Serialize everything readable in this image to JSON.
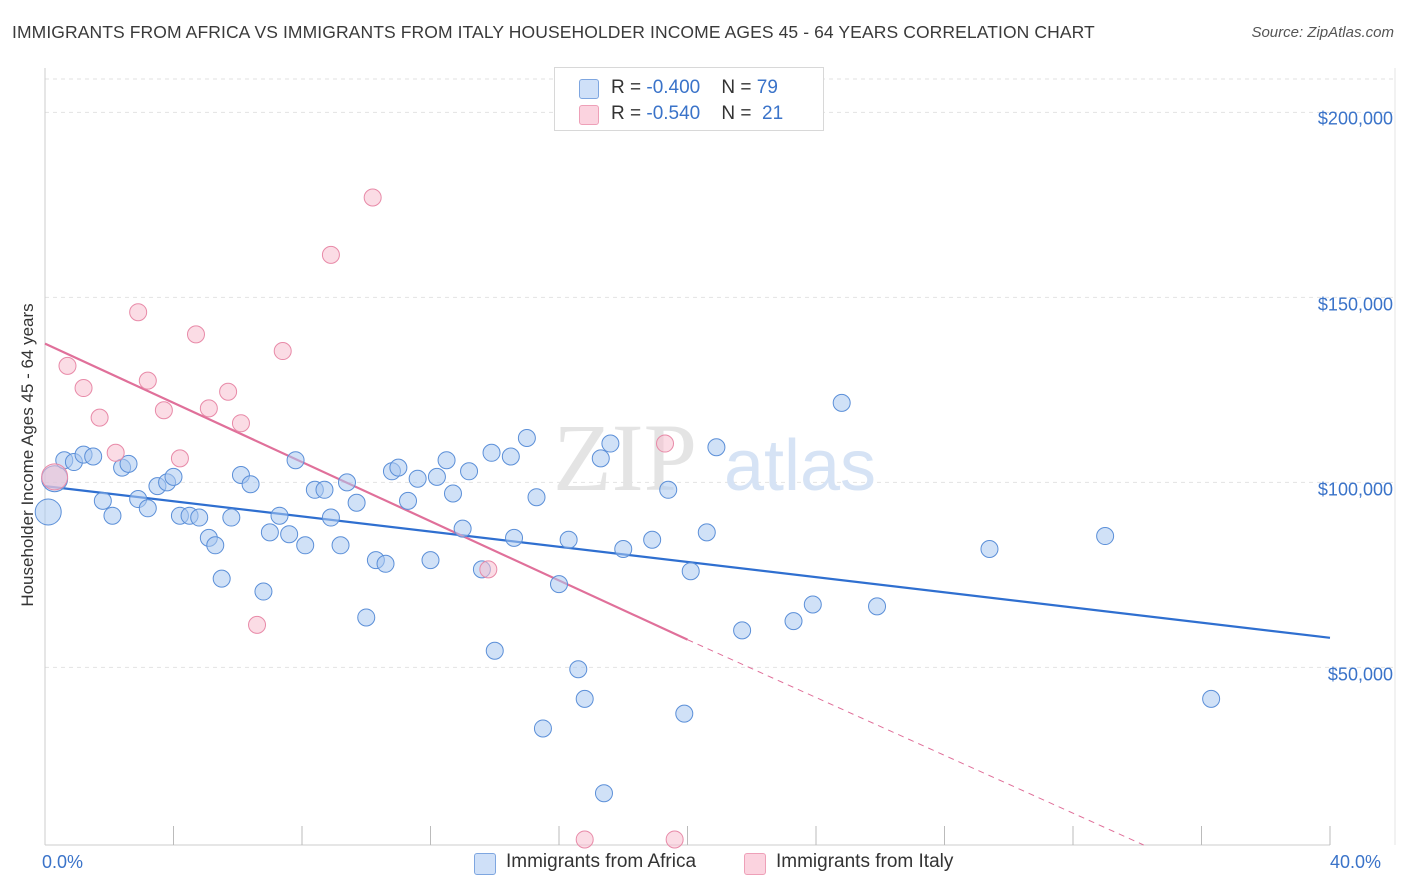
{
  "title": "IMMIGRANTS FROM AFRICA VS IMMIGRANTS FROM ITALY HOUSEHOLDER INCOME AGES 45 - 64 YEARS CORRELATION CHART",
  "source": "Source: ZipAtlas.com",
  "watermark": {
    "zip": "ZIP",
    "atlas": "atlas"
  },
  "legend_top": [
    {
      "r_label": "R = ",
      "r_value": "-0.400",
      "n_label": "N = ",
      "n_value": "79",
      "color": "#a9c8f0"
    },
    {
      "r_label": "R = ",
      "r_value": "-0.540",
      "n_label": "N = ",
      "n_value": "21",
      "color": "#f7b8cc"
    }
  ],
  "colors": {
    "africa_fill": "#a9c8f0",
    "africa_stroke": "#5b8fd8",
    "africa_line": "#2f6fd0",
    "italy_fill": "#f7c0d0",
    "italy_stroke": "#e88aa8",
    "italy_line": "#e0709a",
    "tick_label": "#3a73c9",
    "grid": "#e2e2e2"
  },
  "chart_data": {
    "type": "scatter",
    "title": "IMMIGRANTS FROM AFRICA VS IMMIGRANTS FROM ITALY HOUSEHOLDER INCOME AGES 45 - 64 YEARS CORRELATION CHART",
    "xlabel": "",
    "ylabel": "Householder Income Ages 45 - 64 years",
    "xlim": [
      0,
      40
    ],
    "ylim": [
      2000,
      212000
    ],
    "x_tick_labels": [
      "0.0%",
      "40.0%"
    ],
    "y_ticks": [
      50000,
      100000,
      150000,
      200000
    ],
    "y_tick_labels": [
      "$50,000",
      "$100,000",
      "$150,000",
      "$200,000"
    ],
    "grid": "horizontal dashed",
    "legend_position": "bottom-center",
    "series": [
      {
        "name": "Immigrants from Africa",
        "trend": {
          "x": [
            0,
            40
          ],
          "y": [
            99000,
            58000
          ]
        },
        "points": [
          [
            0.1,
            92000
          ],
          [
            0.3,
            101000
          ],
          [
            0.6,
            106000
          ],
          [
            0.9,
            105500
          ],
          [
            1.2,
            107500
          ],
          [
            1.5,
            107000
          ],
          [
            1.8,
            95000
          ],
          [
            2.1,
            91000
          ],
          [
            2.4,
            104000
          ],
          [
            2.6,
            105000
          ],
          [
            2.9,
            95500
          ],
          [
            3.2,
            93000
          ],
          [
            3.5,
            99000
          ],
          [
            3.8,
            100000
          ],
          [
            4.0,
            101500
          ],
          [
            4.2,
            91000
          ],
          [
            4.5,
            91000
          ],
          [
            4.8,
            90500
          ],
          [
            5.1,
            85000
          ],
          [
            5.3,
            83000
          ],
          [
            5.5,
            74000
          ],
          [
            5.8,
            90500
          ],
          [
            6.1,
            102000
          ],
          [
            6.4,
            99500
          ],
          [
            6.8,
            70500
          ],
          [
            7.0,
            86500
          ],
          [
            7.3,
            91000
          ],
          [
            7.6,
            86000
          ],
          [
            7.8,
            106000
          ],
          [
            8.1,
            83000
          ],
          [
            8.4,
            98000
          ],
          [
            8.7,
            98000
          ],
          [
            8.9,
            90500
          ],
          [
            9.2,
            83000
          ],
          [
            9.4,
            100000
          ],
          [
            9.7,
            94500
          ],
          [
            10.0,
            63500
          ],
          [
            10.3,
            79000
          ],
          [
            10.6,
            78000
          ],
          [
            10.8,
            103000
          ],
          [
            11.0,
            104000
          ],
          [
            11.3,
            95000
          ],
          [
            11.6,
            101000
          ],
          [
            12.0,
            79000
          ],
          [
            12.2,
            101500
          ],
          [
            12.5,
            106000
          ],
          [
            12.7,
            97000
          ],
          [
            13.0,
            87500
          ],
          [
            13.2,
            103000
          ],
          [
            13.6,
            76500
          ],
          [
            13.9,
            108000
          ],
          [
            14.0,
            54500
          ],
          [
            14.5,
            107000
          ],
          [
            14.6,
            85000
          ],
          [
            15.0,
            112000
          ],
          [
            15.3,
            96000
          ],
          [
            15.5,
            33500
          ],
          [
            16.0,
            72500
          ],
          [
            16.3,
            84500
          ],
          [
            16.6,
            49500
          ],
          [
            16.8,
            41500
          ],
          [
            17.3,
            106500
          ],
          [
            17.6,
            110500
          ],
          [
            17.4,
            16000
          ],
          [
            18.0,
            82000
          ],
          [
            18.9,
            84500
          ],
          [
            19.4,
            98000
          ],
          [
            19.9,
            37500
          ],
          [
            20.1,
            76000
          ],
          [
            20.6,
            86500
          ],
          [
            20.9,
            109500
          ],
          [
            21.7,
            60000
          ],
          [
            23.3,
            62500
          ],
          [
            23.9,
            67000
          ],
          [
            24.8,
            121500
          ],
          [
            25.9,
            66500
          ],
          [
            29.4,
            82000
          ],
          [
            33.0,
            85500
          ],
          [
            36.3,
            41500
          ]
        ]
      },
      {
        "name": "Immigrants from Italy",
        "trend": {
          "x": [
            0,
            20
          ],
          "y": [
            137500,
            57500
          ]
        },
        "trend_dashed": {
          "x": [
            20,
            34.2
          ],
          "y": [
            57500,
            2000
          ]
        },
        "points": [
          [
            0.3,
            101500
          ],
          [
            0.7,
            131500
          ],
          [
            1.2,
            125500
          ],
          [
            1.7,
            117500
          ],
          [
            2.2,
            108000
          ],
          [
            2.9,
            146000
          ],
          [
            3.2,
            127500
          ],
          [
            3.7,
            119500
          ],
          [
            4.2,
            106500
          ],
          [
            4.7,
            140000
          ],
          [
            5.1,
            120000
          ],
          [
            5.7,
            124500
          ],
          [
            6.1,
            116000
          ],
          [
            6.6,
            61500
          ],
          [
            7.4,
            135500
          ],
          [
            8.9,
            161500
          ],
          [
            10.2,
            177000
          ],
          [
            13.8,
            76500
          ],
          [
            16.8,
            3500
          ],
          [
            19.3,
            110500
          ],
          [
            19.6,
            3500
          ]
        ]
      }
    ]
  },
  "legend_bottom": [
    "Immigrants from Africa",
    "Immigrants from Italy"
  ]
}
